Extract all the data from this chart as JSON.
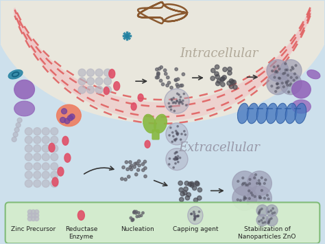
{
  "background_color": "#cde0ec",
  "intracellular_bg": "#ede8dc",
  "legend_bg": "#d4edcc",
  "legend_border": "#7ab870",
  "title_intracellular": "Intracellular",
  "title_extracellular": "Extracellular",
  "title_intra_color": "#b0a898",
  "title_extra_color": "#9898a8",
  "membrane_red": "#e06060",
  "membrane_pink": "#f0c8c8",
  "arrow_color": "#333333",
  "zn_color": "#b8b8c4",
  "reductase_color": "#e05068",
  "nucleation_color": "#606068",
  "capping_color": "#a8a8bc",
  "nano_color": "#9898b0",
  "purple_protein": "#9060b8",
  "purple_protein_edge": "#6840a0",
  "orange_enzyme": "#f07858",
  "orange_enzyme_edge": "#c05040",
  "green_transporter": "#88b840",
  "green_transporter_edge": "#5a8020",
  "blue_helix": "#4878c0",
  "blue_helix_edge": "#2858a0",
  "teal_color": "#2080a0",
  "brown_fiber": "#7a4010",
  "legend_items": [
    "Zinc Precursor",
    "Reductase\nEnzyme",
    "Nucleation",
    "Capping agent",
    "Stabilization of\nNanoparticles ZnO"
  ]
}
